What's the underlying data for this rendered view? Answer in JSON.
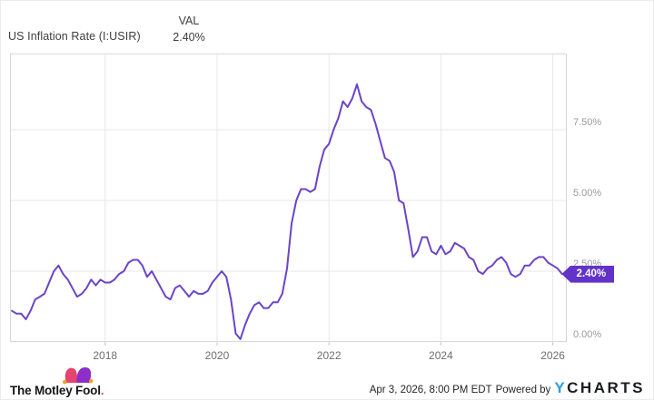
{
  "header": {
    "title": "US Inflation Rate (I:USIR)",
    "metric_label": "VAL",
    "metric_value": "2.40%"
  },
  "chart_data": {
    "type": "line",
    "title": "US Inflation Rate (I:USIR)",
    "series": [
      {
        "name": "US Inflation Rate",
        "unit": "%",
        "start_month": "2016-04",
        "frequency": "monthly",
        "values": [
          1.1,
          1.0,
          1.0,
          0.8,
          1.1,
          1.5,
          1.6,
          1.7,
          2.1,
          2.5,
          2.7,
          2.4,
          2.2,
          1.9,
          1.6,
          1.7,
          1.9,
          2.2,
          2.0,
          2.2,
          2.1,
          2.1,
          2.2,
          2.4,
          2.5,
          2.8,
          2.9,
          2.9,
          2.7,
          2.3,
          2.5,
          2.2,
          1.9,
          1.6,
          1.5,
          1.9,
          2.0,
          1.8,
          1.6,
          1.8,
          1.7,
          1.7,
          1.8,
          2.1,
          2.3,
          2.5,
          2.3,
          1.5,
          0.3,
          0.1,
          0.6,
          1.0,
          1.3,
          1.4,
          1.2,
          1.2,
          1.4,
          1.4,
          1.7,
          2.6,
          4.2,
          5.0,
          5.4,
          5.4,
          5.3,
          5.4,
          6.2,
          6.8,
          7.0,
          7.5,
          7.9,
          8.5,
          8.3,
          8.6,
          9.1,
          8.5,
          8.3,
          8.2,
          7.7,
          7.1,
          6.5,
          6.4,
          6.0,
          5.0,
          4.9,
          4.0,
          3.0,
          3.2,
          3.7,
          3.7,
          3.2,
          3.1,
          3.4,
          3.1,
          3.2,
          3.5,
          3.4,
          3.3,
          3.0,
          2.9,
          2.5,
          2.4,
          2.6,
          2.7,
          2.9,
          3.0,
          2.8,
          2.4,
          2.3,
          2.4,
          2.7,
          2.7,
          2.9,
          3.0,
          3.0,
          2.8,
          2.7,
          2.6,
          2.4
        ]
      }
    ],
    "x_start_decimal_year": 2016.3333,
    "x_step": 0.083333,
    "xlim": [
      2016.3,
      2026.25
    ],
    "ylim": [
      0,
      10.19
    ],
    "x_ticks": [
      {
        "value": 2018,
        "label": "2018"
      },
      {
        "value": 2020,
        "label": "2020"
      },
      {
        "value": 2022,
        "label": "2022"
      },
      {
        "value": 2024,
        "label": "2024"
      },
      {
        "value": 2026,
        "label": "2026"
      }
    ],
    "y_ticks": [
      {
        "value": 7.5,
        "label": "7.50%"
      },
      {
        "value": 5.0,
        "label": "5.00%"
      },
      {
        "value": 2.5,
        "label": "2.50%"
      },
      {
        "value": 0.0,
        "label": "0.00%"
      }
    ],
    "end_label": "2.40%",
    "grid": true,
    "legend_position": "none",
    "line_color": "#6B44C8",
    "badge_color": "#6133C9",
    "gridline_color": "#e7e7e7",
    "border_color": "#d8d8d8"
  },
  "footer": {
    "brand": "The Motley Fool",
    "brand_suffix": ".",
    "timestamp": "Apr 3, 2026, 8:00 PM EDT",
    "powered_by": "Powered by",
    "ycharts_y": "Y",
    "ycharts_rest": "CHARTS",
    "colors": {
      "ycharts_blue": "#2D9FDB",
      "fool_pink": "#E5446D",
      "fool_purple": "#8E2EC9",
      "fool_gold": "#F5A11C"
    }
  }
}
